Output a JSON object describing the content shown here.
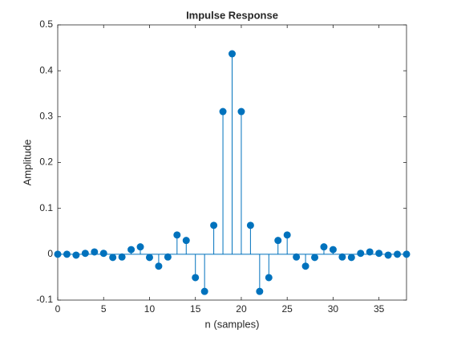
{
  "chart_data": {
    "type": "stem",
    "title": "Impulse Response",
    "xlabel": "n (samples)",
    "ylabel": "Amplitude",
    "x": [
      0,
      1,
      2,
      3,
      4,
      5,
      6,
      7,
      8,
      9,
      10,
      11,
      12,
      13,
      14,
      15,
      16,
      17,
      18,
      19,
      20,
      21,
      22,
      23,
      24,
      25,
      26,
      27,
      28,
      29,
      30,
      31,
      32,
      33,
      34,
      35,
      36,
      37,
      38
    ],
    "series": [
      {
        "color": "#0072bd",
        "values": [
          0,
          0,
          -0.002,
          0.002,
          0.005,
          0.002,
          -0.007,
          -0.006,
          0.01,
          0.016,
          -0.007,
          -0.026,
          -0.006,
          0.042,
          0.03,
          -0.051,
          -0.081,
          0.063,
          0.311,
          0.437,
          0.311,
          0.063,
          -0.081,
          -0.051,
          0.03,
          0.042,
          -0.006,
          -0.026,
          -0.007,
          0.016,
          0.01,
          -0.006,
          -0.007,
          0.002,
          0.005,
          0.002,
          -0.002,
          0,
          0
        ]
      }
    ],
    "xlim": [
      0,
      38
    ],
    "xticks": [
      0,
      5,
      10,
      15,
      20,
      25,
      30,
      35
    ],
    "ylim": [
      -0.1,
      0.5
    ],
    "yticks": [
      -0.1,
      0,
      0.1,
      0.2,
      0.3,
      0.4,
      0.5
    ]
  }
}
